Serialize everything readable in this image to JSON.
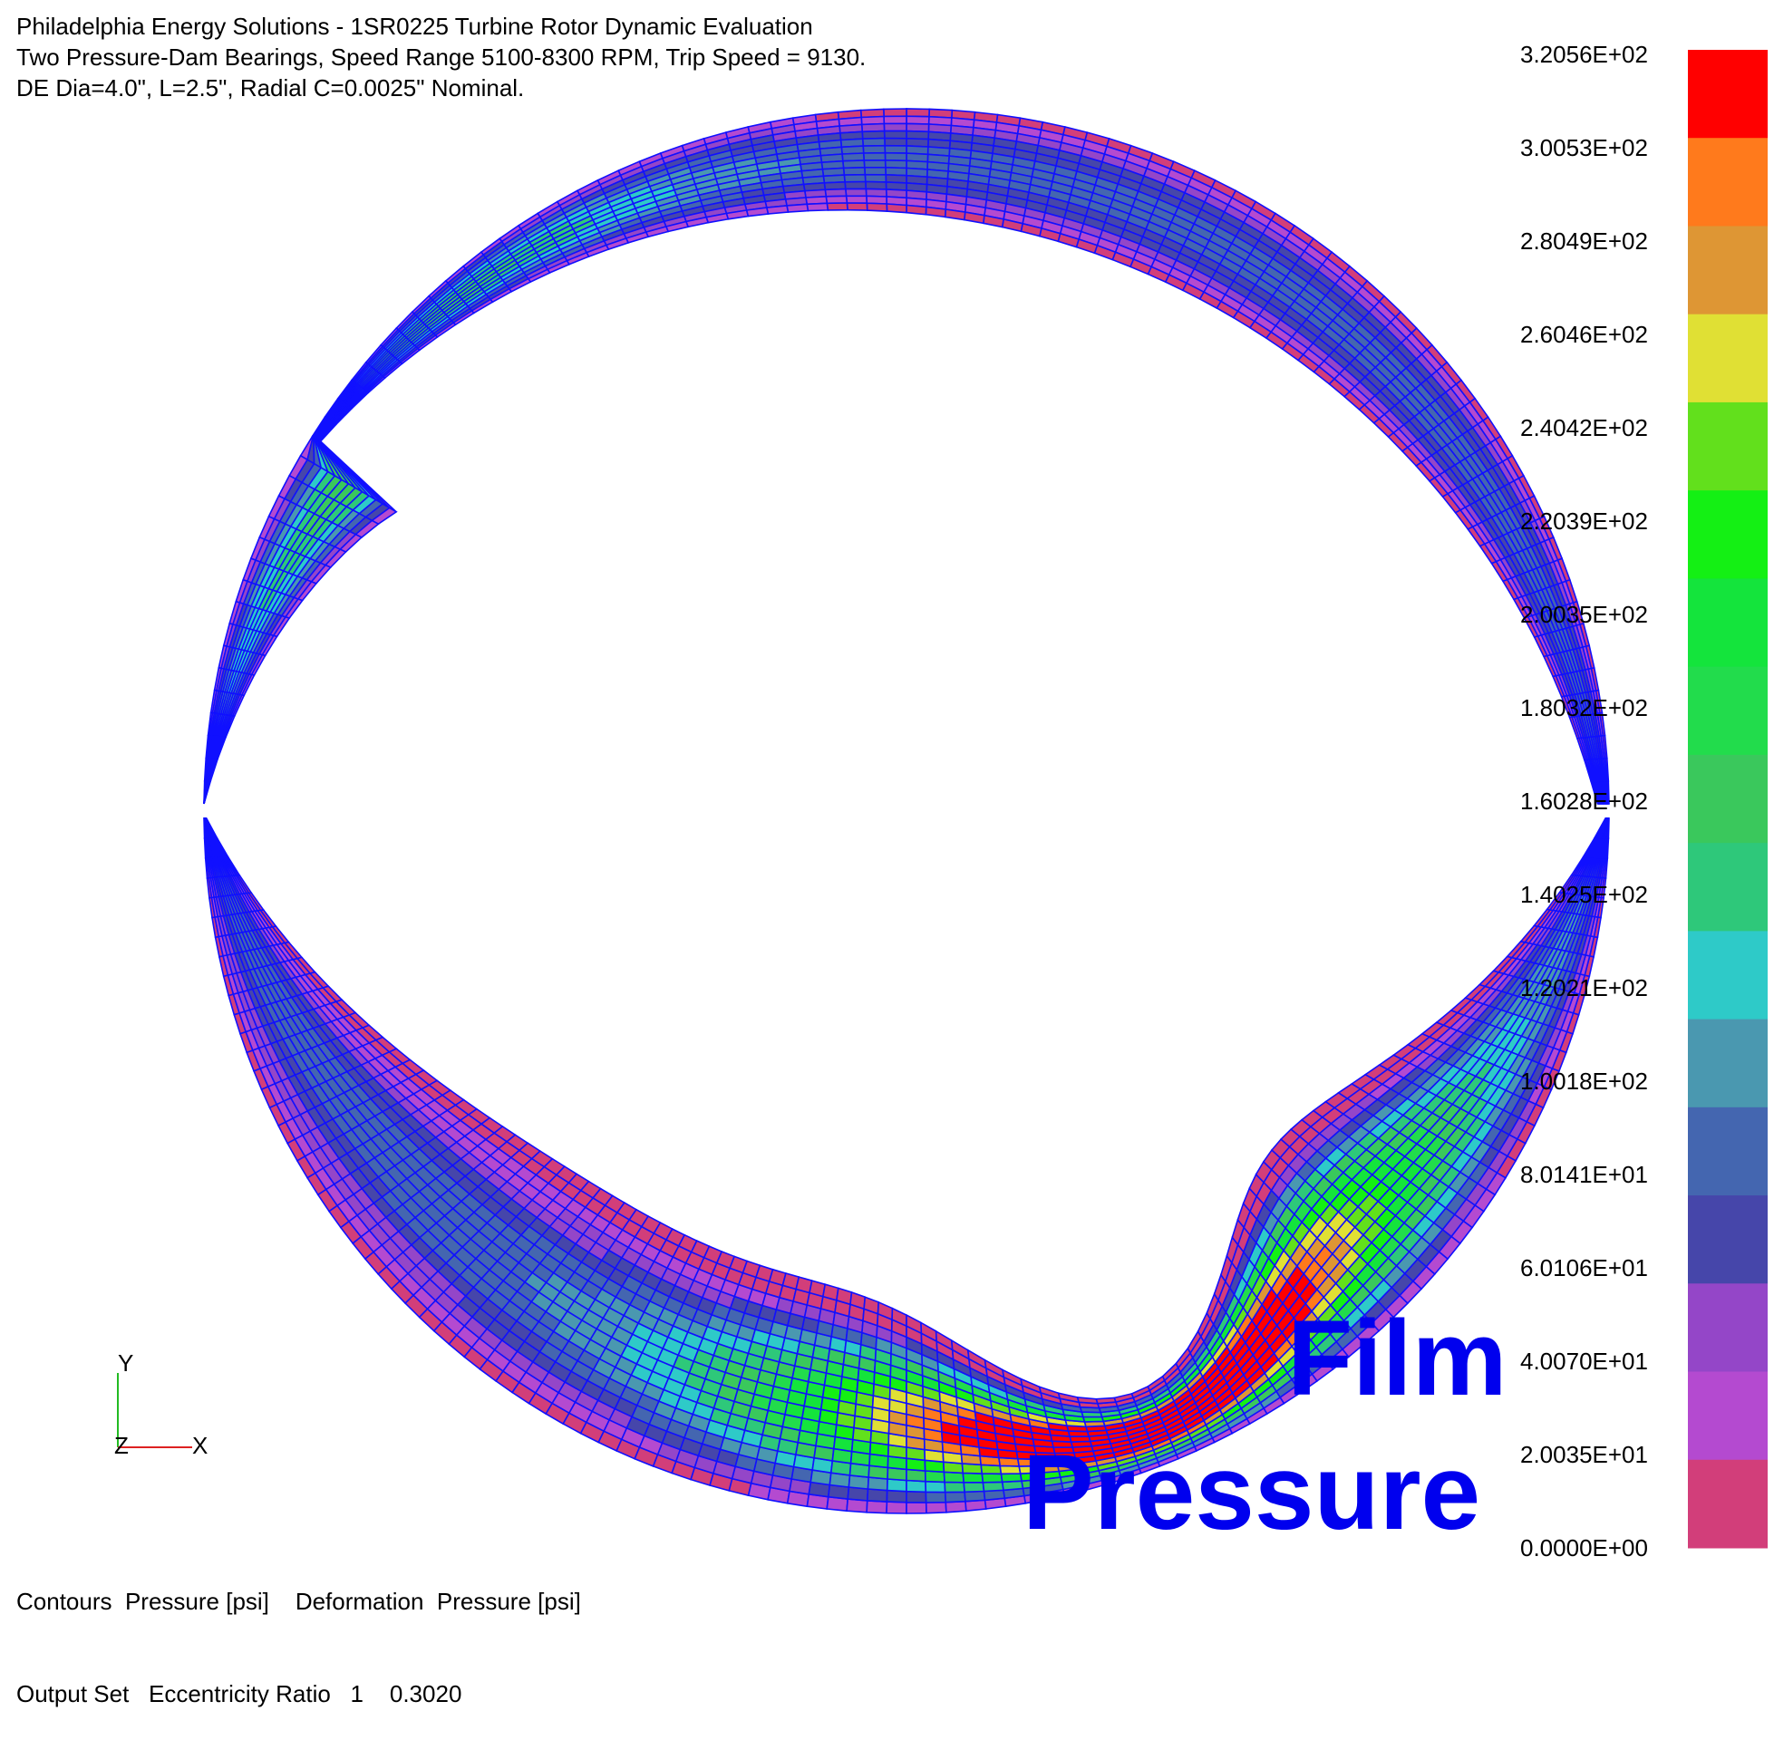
{
  "header": {
    "line1": "Philadelphia Energy Solutions - 1SR0225 Turbine Rotor Dynamic Evaluation",
    "line2": "Two Pressure-Dam Bearings, Speed Range 5100-8300 RPM, Trip Speed = 9130.",
    "line3": "DE Dia=4.0\", L=2.5\", Radial C=0.0025\" Nominal."
  },
  "footer": {
    "contours_label": "Contours",
    "contours_value": "Pressure [psi]",
    "deformation_label": "Deformation",
    "deformation_value": "Pressure [psi]",
    "output_set_label": "Output Set",
    "output_set_name": "Eccentricity Ratio",
    "output_set_number": "1",
    "output_set_value": "0.3020"
  },
  "overlay": {
    "word1": "Film",
    "word2": "Pressure"
  },
  "axes_triad": {
    "y": "Y",
    "z": "Z",
    "x": "X"
  },
  "legend": {
    "labels": [
      "3.2056E+02",
      "3.0053E+02",
      "2.8049E+02",
      "2.6046E+02",
      "2.4042E+02",
      "2.2039E+02",
      "2.0035E+02",
      "1.8032E+02",
      "1.6028E+02",
      "1.4025E+02",
      "1.2021E+02",
      "1.0018E+02",
      "8.0141E+01",
      "6.0106E+01",
      "4.0070E+01",
      "2.0035E+01",
      "0.0000E+00"
    ],
    "colors": [
      "#ff0000",
      "#ff7a1c",
      "#de9634",
      "#e0e034",
      "#62e01c",
      "#14f014",
      "#14e43c",
      "#22dc4c",
      "#3ac85c",
      "#2ec87a",
      "#2ecac8",
      "#4a98b0",
      "#4466b0",
      "#4646aa",
      "#9446c8",
      "#b44ad0",
      "#d23e7a"
    ]
  },
  "colors": {
    "mesh_line": "#1010ff",
    "title_blue": "#0000ee"
  }
}
